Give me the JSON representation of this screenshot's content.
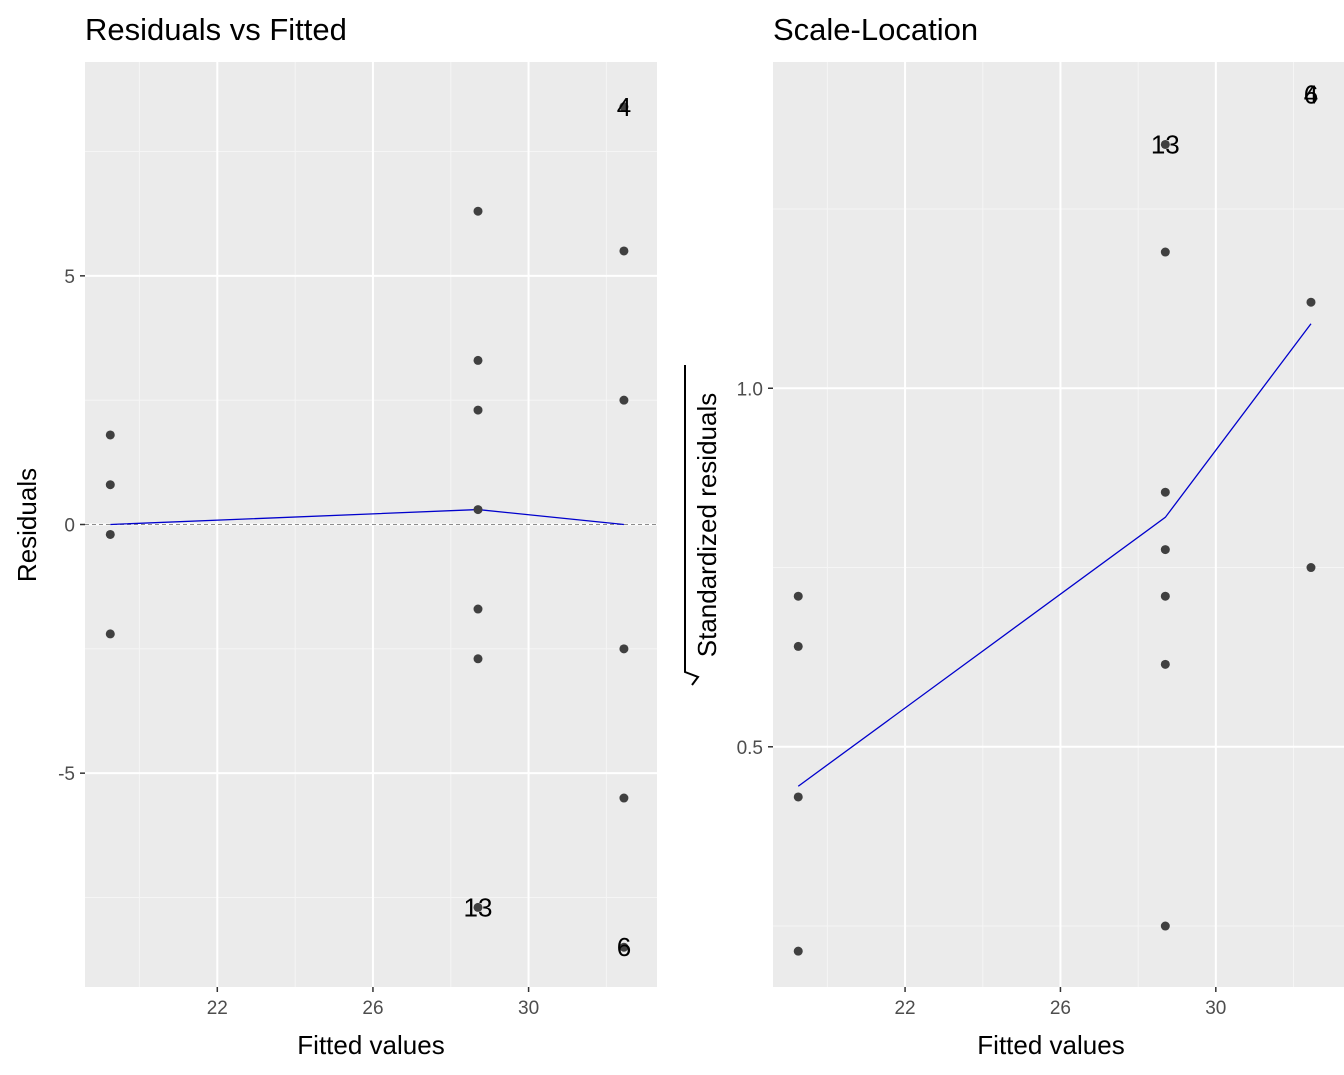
{
  "colors": {
    "panel_background": "#ebebeb",
    "grid_major": "#ffffff",
    "grid_minor": "#f5f5f5",
    "points": "#404040",
    "smooth_line": "#0000cc",
    "reference_line": "#8c8c8c",
    "tick_text": "#4d4d4d"
  },
  "chart_data": [
    {
      "type": "scatter",
      "title": "Residuals vs Fitted",
      "xlabel": "Fitted values",
      "ylabel": "Residuals",
      "xlim": [
        18.6,
        33.3
      ],
      "ylim": [
        -9.3,
        9.3
      ],
      "x_ticks": [
        22,
        26,
        30
      ],
      "x_tick_labels": [
        "22",
        "26",
        "30"
      ],
      "y_ticks": [
        -5,
        0,
        5
      ],
      "y_tick_labels": [
        "-5",
        "0",
        "5"
      ],
      "grid": true,
      "points": [
        {
          "x": 19.25,
          "y": 1.8
        },
        {
          "x": 19.25,
          "y": 0.8
        },
        {
          "x": 19.25,
          "y": -0.2
        },
        {
          "x": 19.25,
          "y": -2.2
        },
        {
          "x": 28.7,
          "y": 6.3
        },
        {
          "x": 28.7,
          "y": 3.3
        },
        {
          "x": 28.7,
          "y": 2.3
        },
        {
          "x": 28.7,
          "y": 0.3
        },
        {
          "x": 28.7,
          "y": -1.7
        },
        {
          "x": 28.7,
          "y": -2.7
        },
        {
          "x": 28.7,
          "y": -7.7
        },
        {
          "x": 32.45,
          "y": 8.4
        },
        {
          "x": 32.45,
          "y": 5.5
        },
        {
          "x": 32.45,
          "y": 2.5
        },
        {
          "x": 32.45,
          "y": -2.5
        },
        {
          "x": 32.45,
          "y": -5.5
        },
        {
          "x": 32.45,
          "y": -8.5
        }
      ],
      "smooth_line": [
        {
          "x": 19.25,
          "y": 0.0
        },
        {
          "x": 28.7,
          "y": 0.3
        },
        {
          "x": 32.45,
          "y": 0.0
        }
      ],
      "reference_line_y": 0,
      "point_labels": [
        {
          "x": 32.45,
          "y": 8.4,
          "text": "4"
        },
        {
          "x": 28.7,
          "y": -7.7,
          "text": "13"
        },
        {
          "x": 32.45,
          "y": -8.5,
          "text": "6"
        }
      ]
    },
    {
      "type": "scatter",
      "title": "Scale-Location",
      "xlabel": "Fitted values",
      "ylabel": "Standardized residuals",
      "ylabel_sqrt": true,
      "xlim": [
        18.6,
        33.3
      ],
      "ylim": [
        0.165,
        1.455
      ],
      "x_ticks": [
        22,
        26,
        30
      ],
      "x_tick_labels": [
        "22",
        "26",
        "30"
      ],
      "y_ticks": [
        0.5,
        1.0
      ],
      "y_tick_labels": [
        "0.5",
        "1.0"
      ],
      "grid": true,
      "points": [
        {
          "x": 19.25,
          "y": 0.71
        },
        {
          "x": 19.25,
          "y": 0.64
        },
        {
          "x": 19.25,
          "y": 0.43
        },
        {
          "x": 19.25,
          "y": 0.215
        },
        {
          "x": 28.7,
          "y": 1.34
        },
        {
          "x": 28.7,
          "y": 1.19
        },
        {
          "x": 28.7,
          "y": 0.855
        },
        {
          "x": 28.7,
          "y": 0.775
        },
        {
          "x": 28.7,
          "y": 0.71
        },
        {
          "x": 28.7,
          "y": 0.615
        },
        {
          "x": 28.7,
          "y": 0.25
        },
        {
          "x": 32.45,
          "y": 1.12
        },
        {
          "x": 32.45,
          "y": 0.75
        }
      ],
      "smooth_line": [
        {
          "x": 19.25,
          "y": 0.445
        },
        {
          "x": 28.7,
          "y": 0.82
        },
        {
          "x": 32.45,
          "y": 1.09
        }
      ],
      "point_labels": [
        {
          "x": 28.7,
          "y": 1.34,
          "text": "13"
        },
        {
          "x": 32.45,
          "y": 1.41,
          "text": "6"
        },
        {
          "x": 32.45,
          "y": 1.41,
          "text": "4"
        }
      ]
    }
  ]
}
